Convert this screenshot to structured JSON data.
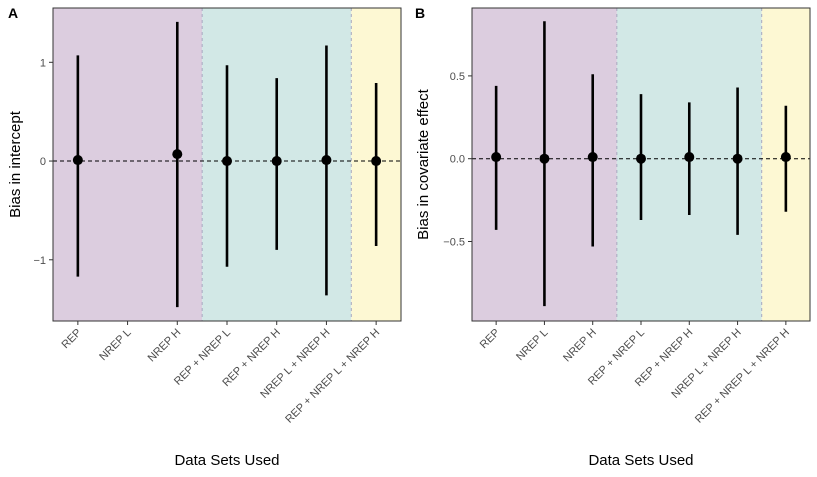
{
  "colors": {
    "region_rep": "#dccddf",
    "region_rep_nrep": "#d2e8e6",
    "region_all": "#fdf8d3",
    "point": "#000000",
    "reference_line": "#000000",
    "divider": "#a8a8c0"
  },
  "chart_data": [
    {
      "type": "errorbar",
      "panel_label": "A",
      "xlabel": "Data Sets Used",
      "ylabel": "Bias in intercept",
      "categories": [
        "REP",
        "NREP L",
        "NREP H",
        "REP + NREP L",
        "REP + NREP H",
        "NREP L + NREP H",
        "REP + NREP L + NREP H"
      ],
      "ylim": [
        -1.62,
        1.55
      ],
      "yticks": [
        -1,
        0,
        1
      ],
      "ytick_labels": [
        "−1",
        "0",
        "1"
      ],
      "reference_line": 0,
      "regions": [
        {
          "from": 1,
          "to": 3,
          "color_key": "region_rep"
        },
        {
          "from": 4,
          "to": 6,
          "color_key": "region_rep_nrep"
        },
        {
          "from": 7,
          "to": 7,
          "color_key": "region_all"
        }
      ],
      "points": [
        {
          "x": 1,
          "estimate": 0.01,
          "lower": -1.17,
          "upper": 1.07
        },
        {
          "x": 3,
          "estimate": 0.07,
          "lower": -1.48,
          "upper": 1.41
        },
        {
          "x": 4,
          "estimate": 0.0,
          "lower": -1.07,
          "upper": 0.97
        },
        {
          "x": 5,
          "estimate": 0.0,
          "lower": -0.9,
          "upper": 0.84
        },
        {
          "x": 6,
          "estimate": 0.01,
          "lower": -1.36,
          "upper": 1.17
        },
        {
          "x": 7,
          "estimate": 0.0,
          "lower": -0.86,
          "upper": 0.79
        }
      ]
    },
    {
      "type": "errorbar",
      "panel_label": "B",
      "xlabel": "Data Sets Used",
      "ylabel": "Bias in covariate effect",
      "categories": [
        "REP",
        "NREP L",
        "NREP H",
        "REP + NREP L",
        "REP + NREP H",
        "NREP L + NREP H",
        "REP + NREP L + NREP H"
      ],
      "ylim": [
        -0.98,
        0.91
      ],
      "yticks": [
        -0.5,
        0,
        0.5
      ],
      "ytick_labels": [
        "−0.5",
        "0.0",
        "0.5"
      ],
      "reference_line": 0,
      "regions": [
        {
          "from": 1,
          "to": 3,
          "color_key": "region_rep"
        },
        {
          "from": 4,
          "to": 6,
          "color_key": "region_rep_nrep"
        },
        {
          "from": 7,
          "to": 7,
          "color_key": "region_all"
        }
      ],
      "points": [
        {
          "x": 1,
          "estimate": 0.01,
          "lower": -0.43,
          "upper": 0.44
        },
        {
          "x": 2,
          "estimate": 0.0,
          "lower": -0.89,
          "upper": 0.83
        },
        {
          "x": 3,
          "estimate": 0.01,
          "lower": -0.53,
          "upper": 0.51
        },
        {
          "x": 4,
          "estimate": 0.0,
          "lower": -0.37,
          "upper": 0.39
        },
        {
          "x": 5,
          "estimate": 0.01,
          "lower": -0.34,
          "upper": 0.34
        },
        {
          "x": 6,
          "estimate": 0.0,
          "lower": -0.46,
          "upper": 0.43
        },
        {
          "x": 7,
          "estimate": 0.01,
          "lower": -0.32,
          "upper": 0.32
        }
      ]
    }
  ]
}
